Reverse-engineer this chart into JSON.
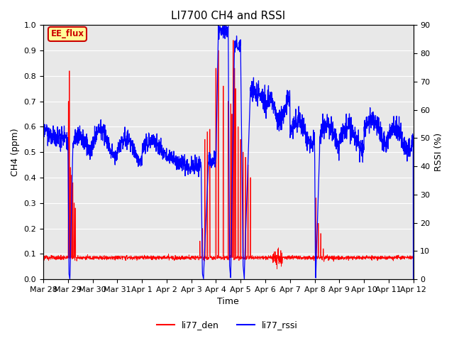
{
  "title": "LI7700 CH4 and RSSI",
  "xlabel": "Time",
  "ylabel_left": "CH4 (ppm)",
  "ylabel_right": "RSSI (%)",
  "ylim_left": [
    0.0,
    1.0
  ],
  "ylim_right": [
    0,
    90
  ],
  "yticks_left": [
    0.0,
    0.1,
    0.2,
    0.3,
    0.4,
    0.5,
    0.6,
    0.7,
    0.8,
    0.9,
    1.0
  ],
  "yticks_right": [
    0,
    10,
    20,
    30,
    40,
    50,
    60,
    70,
    80,
    90
  ],
  "xtick_labels": [
    "Mar 28",
    "Mar 29",
    "Mar 30",
    "Mar 31",
    "Apr 1",
    "Apr 2",
    "Apr 3",
    "Apr 4",
    "Apr 5",
    "Apr 6",
    "Apr 7",
    "Apr 8",
    "Apr 9",
    "Apr 10",
    "Apr 11",
    "Apr 12"
  ],
  "color_red": "#ff0000",
  "color_blue": "#0000ff",
  "background_color": "#e8e8e8",
  "legend_labels": [
    "li77_den",
    "li77_rssi"
  ],
  "annotation_text": "EE_flux",
  "annotation_color": "#cc0000",
  "annotation_bg": "#ffff99",
  "title_fontsize": 11,
  "axis_fontsize": 9,
  "tick_fontsize": 8,
  "figsize": [
    6.4,
    4.8
  ],
  "dpi": 100
}
